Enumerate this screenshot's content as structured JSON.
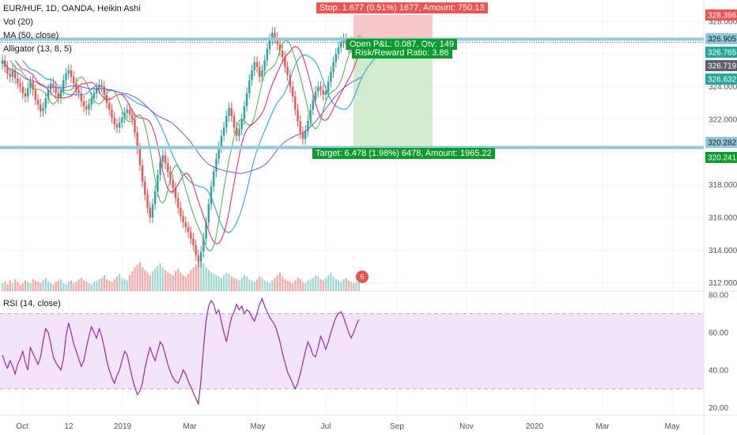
{
  "legend": {
    "symbol": "EUR/HUF, 1D, OANDA, Heikin Ashi",
    "vol": "Vol (20)",
    "ma": "MA (50, close)",
    "alligator": "Alligator (13, 8, 5)",
    "rsi": "RSI (14, close)"
  },
  "position": {
    "stop_label": "Stop: 1.677 (0.51%) 1677, Amount: 750.13",
    "pnl_label": "Open P&L: 0.087, Qty: 149",
    "ratio_label": "Risk/Reward Ratio: 3.86",
    "target_label": "Target: 6.478 (1.98%) 6478, Amount: 1965.22"
  },
  "price_badges": [
    "328.396",
    "326.905",
    "326.765",
    "326.719",
    "326.632",
    "320.282",
    "320.241"
  ],
  "event_badge": "6",
  "colors": {
    "up": "#26a69a",
    "down": "#ef5350",
    "level_line": "#8fc9da",
    "rsi_line": "#9c27b0",
    "rsi_band": "#f3e4fb",
    "stop_zone": "#f9c7c9",
    "target_zone": "#cfeccd",
    "jaw": "#2196f3",
    "teeth": "#e91e63",
    "lips": "#4caf50"
  },
  "chart_data": [
    {
      "type": "candlestick",
      "title": "EUR/HUF, 1D, OANDA, Heikin Ashi",
      "x_ticks": [
        "Oct",
        "12",
        "2019",
        "Mar",
        "May",
        "Jul",
        "Sep",
        "Nov",
        "2020",
        "Mar",
        "May"
      ],
      "y_ticks": [
        312,
        314,
        316,
        318,
        320,
        322,
        324,
        326,
        328
      ],
      "y_tick_labels": [
        "312.000",
        "314.000",
        "316.000",
        "318.000",
        "322.000",
        "324.000",
        "328.000"
      ],
      "ylim": [
        311.5,
        329.3
      ],
      "grid": true,
      "entry_price": 326.72,
      "stop_price": 328.396,
      "target_price": 320.241,
      "level_lines": [
        326.905,
        320.282
      ],
      "series": [
        {
          "name": "Close (Heikin Ashi)",
          "values": [
            325.6,
            325.2,
            324.8,
            324.6,
            325.0,
            324.5,
            324.2,
            324.0,
            323.6,
            323.4,
            323.9,
            324.3,
            323.8,
            323.2,
            322.9,
            322.5,
            322.7,
            323.3,
            323.8,
            324.2,
            324.0,
            323.6,
            323.3,
            323.8,
            324.4,
            324.8,
            325.0,
            324.6,
            324.2,
            323.8,
            323.6,
            323.1,
            322.8,
            322.6,
            322.9,
            323.3,
            323.6,
            323.9,
            324.1,
            324.0,
            323.5,
            323.0,
            322.6,
            322.1,
            321.7,
            321.5,
            321.8,
            322.1,
            322.4,
            322.6,
            322.3,
            322.0,
            321.2,
            320.2,
            319.2,
            318.2,
            317.4,
            316.6,
            316.0,
            316.8,
            317.6,
            318.6,
            319.4,
            319.8,
            319.3,
            318.8,
            318.3,
            317.8,
            317.2,
            316.6,
            316.1,
            315.7,
            315.4,
            315.1,
            314.7,
            314.3,
            313.7,
            313.3,
            313.9,
            314.7,
            315.7,
            316.8,
            317.9,
            318.8,
            319.6,
            320.3,
            321.0,
            321.5,
            322.2,
            322.7,
            322.2,
            321.5,
            321.0,
            321.4,
            322.0,
            322.8,
            323.6,
            324.4,
            325.0,
            325.5,
            325.2,
            324.6,
            325.0,
            325.6,
            326.3,
            326.9,
            327.3,
            327.0,
            326.6,
            326.2,
            325.8,
            325.2,
            324.7,
            324.0,
            323.4,
            322.6,
            321.9,
            321.2,
            320.8,
            321.3,
            321.9,
            322.6,
            323.2,
            323.7,
            324.0,
            323.8,
            323.5,
            323.7,
            324.3,
            324.9,
            325.5,
            326.0,
            326.4,
            326.7,
            326.9,
            326.6,
            326.4,
            326.7,
            326.2,
            326.5,
            326.8,
            326.7
          ]
        },
        {
          "name": "Volume",
          "values": [
            6,
            7,
            5,
            8,
            6,
            9,
            7,
            5,
            6,
            8,
            7,
            6,
            9,
            8,
            7,
            6,
            8,
            10,
            7,
            6,
            5,
            7,
            8,
            9,
            6,
            5,
            7,
            8,
            6,
            7,
            9,
            10,
            8,
            7,
            6,
            5,
            7,
            8,
            9,
            10,
            12,
            9,
            8,
            7,
            9,
            11,
            13,
            10,
            9,
            8,
            12,
            15,
            18,
            20,
            22,
            18,
            16,
            14,
            12,
            15,
            17,
            19,
            21,
            18,
            16,
            14,
            13,
            12,
            15,
            17,
            14,
            12,
            11,
            13,
            16,
            18,
            20,
            22,
            25,
            21,
            18,
            16,
            14,
            13,
            12,
            11,
            10,
            12,
            14,
            13,
            11,
            10,
            9,
            8,
            10,
            12,
            11,
            9,
            8,
            7,
            9,
            11,
            10,
            8,
            7,
            6,
            8,
            10,
            12,
            14,
            11,
            9,
            8,
            7,
            6,
            8,
            10,
            9,
            7,
            6,
            8,
            9,
            10,
            12,
            11,
            9,
            8,
            10,
            12,
            14,
            11,
            9,
            8,
            7,
            9,
            10,
            8,
            7,
            6,
            7,
            8
          ]
        },
        {
          "name": "RSI (14, close)",
          "values": [
            48,
            44,
            41,
            45,
            42,
            38,
            43,
            46,
            50,
            44,
            40,
            52,
            49,
            46,
            43,
            47,
            55,
            62,
            60,
            54,
            47,
            44,
            42,
            40,
            46,
            58,
            65,
            60,
            54,
            50,
            46,
            42,
            45,
            52,
            58,
            63,
            60,
            57,
            62,
            58,
            52,
            45,
            40,
            36,
            33,
            37,
            40,
            45,
            50,
            48,
            42,
            36,
            31,
            27,
            29,
            33,
            41,
            47,
            52,
            48,
            45,
            50,
            55,
            53,
            48,
            43,
            39,
            36,
            34,
            33,
            36,
            40,
            38,
            34,
            31,
            28,
            25,
            22,
            35,
            52,
            66,
            74,
            77,
            75,
            70,
            72,
            66,
            60,
            55,
            62,
            68,
            71,
            75,
            72,
            74,
            70,
            72,
            71,
            68,
            66,
            70,
            75,
            78,
            74,
            71,
            68,
            66,
            64,
            60,
            55,
            49,
            44,
            39,
            36,
            33,
            30,
            33,
            38,
            44,
            50,
            55,
            52,
            48,
            47,
            52,
            58,
            55,
            51,
            55,
            60,
            64,
            68,
            70,
            71,
            68,
            64,
            60,
            57,
            60,
            64,
            67
          ]
        }
      ]
    },
    {
      "type": "line",
      "title": "RSI (14, close)",
      "y_ticks": [
        20,
        40,
        60,
        80
      ],
      "y_tick_labels": [
        "20.00",
        "40.00",
        "60.00",
        "80.00"
      ],
      "ylim": [
        16,
        82
      ],
      "band": [
        30,
        70
      ],
      "mid": 50
    }
  ]
}
